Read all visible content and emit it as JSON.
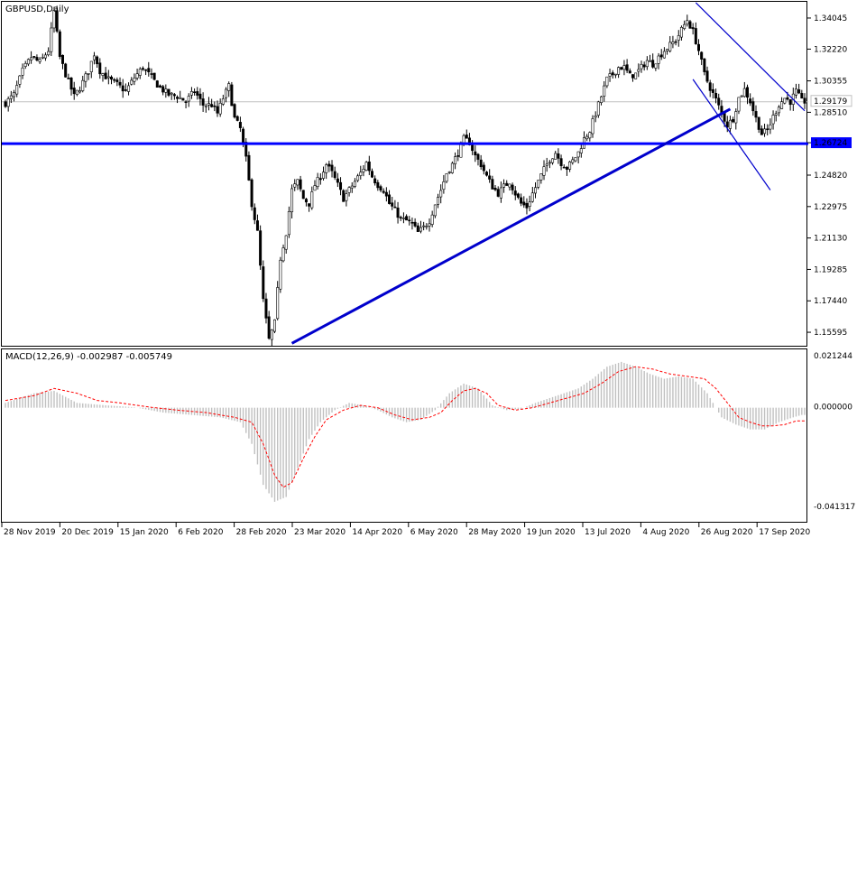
{
  "chart": {
    "title": "GBPUSD,Daily",
    "current_price": "1.29179",
    "hline_price": "1.26724",
    "colors": {
      "candle": "#000000",
      "trendline": "#0000cc",
      "hline": "#0000ff",
      "signal": "#ff0000",
      "histogram": "#c0c0c0",
      "current": "#c0c0c0"
    }
  },
  "macd": {
    "title": "MACD(12,26,9) -0.002987 -0.005749",
    "axis_labels": [
      "0.021244",
      "0.000000",
      "-0.041317"
    ]
  },
  "chart_data": {
    "type": "candlestick",
    "symbol": "GBPUSD",
    "timeframe": "Daily",
    "price_ticks": [
      "1.34045",
      "1.32220",
      "1.30355",
      "1.28510",
      "1.26724",
      "1.24820",
      "1.22975",
      "1.21130",
      "1.19285",
      "1.17440",
      "1.15595"
    ],
    "date_ticks": [
      "28 Nov 2019",
      "20 Dec 2019",
      "15 Jan 2020",
      "6 Feb 2020",
      "28 Feb 2020",
      "23 Mar 2020",
      "14 Apr 2020",
      "6 May 2020",
      "28 May 2020",
      "19 Jun 2020",
      "13 Jul 2020",
      "4 Aug 2020",
      "26 Aug 2020",
      "17 Sep 2020"
    ],
    "ylim": [
      1.1475,
      1.3505
    ],
    "close_path": [
      [
        0,
        1.291
      ],
      [
        3,
        1.296
      ],
      [
        6,
        1.31
      ],
      [
        9,
        1.318
      ],
      [
        12,
        1.315
      ],
      [
        15,
        1.322
      ],
      [
        17,
        1.345
      ],
      [
        19,
        1.318
      ],
      [
        21,
        1.308
      ],
      [
        24,
        1.295
      ],
      [
        26,
        1.3
      ],
      [
        29,
        1.31
      ],
      [
        31,
        1.32
      ],
      [
        33,
        1.31
      ],
      [
        36,
        1.305
      ],
      [
        39,
        1.302
      ],
      [
        42,
        1.298
      ],
      [
        45,
        1.306
      ],
      [
        48,
        1.312
      ],
      [
        51,
        1.306
      ],
      [
        54,
        1.3
      ],
      [
        57,
        1.296
      ],
      [
        60,
        1.295
      ],
      [
        63,
        1.292
      ],
      [
        66,
        1.298
      ],
      [
        69,
        1.29
      ],
      [
        72,
        1.29
      ],
      [
        74,
        1.285
      ],
      [
        76,
        1.294
      ],
      [
        78,
        1.301
      ],
      [
        80,
        1.282
      ],
      [
        82,
        1.276
      ],
      [
        84,
        1.258
      ],
      [
        86,
        1.232
      ],
      [
        88,
        1.215
      ],
      [
        90,
        1.175
      ],
      [
        92,
        1.152
      ],
      [
        94,
        1.162
      ],
      [
        96,
        1.2
      ],
      [
        98,
        1.215
      ],
      [
        100,
        1.24
      ],
      [
        102,
        1.245
      ],
      [
        104,
        1.235
      ],
      [
        106,
        1.232
      ],
      [
        108,
        1.243
      ],
      [
        110,
        1.248
      ],
      [
        112,
        1.255
      ],
      [
        114,
        1.25
      ],
      [
        116,
        1.243
      ],
      [
        118,
        1.235
      ],
      [
        120,
        1.24
      ],
      [
        122,
        1.245
      ],
      [
        124,
        1.25
      ],
      [
        126,
        1.256
      ],
      [
        128,
        1.248
      ],
      [
        130,
        1.243
      ],
      [
        132,
        1.24
      ],
      [
        134,
        1.232
      ],
      [
        136,
        1.228
      ],
      [
        138,
        1.223
      ],
      [
        140,
        1.222
      ],
      [
        142,
        1.22
      ],
      [
        144,
        1.215
      ],
      [
        146,
        1.218
      ],
      [
        148,
        1.222
      ],
      [
        150,
        1.232
      ],
      [
        152,
        1.24
      ],
      [
        154,
        1.25
      ],
      [
        156,
        1.255
      ],
      [
        158,
        1.262
      ],
      [
        160,
        1.27
      ],
      [
        162,
        1.268
      ],
      [
        164,
        1.26
      ],
      [
        166,
        1.255
      ],
      [
        168,
        1.248
      ],
      [
        170,
        1.242
      ],
      [
        172,
        1.238
      ],
      [
        174,
        1.242
      ],
      [
        176,
        1.245
      ],
      [
        178,
        1.238
      ],
      [
        180,
        1.232
      ],
      [
        182,
        1.23
      ],
      [
        184,
        1.238
      ],
      [
        186,
        1.245
      ],
      [
        188,
        1.252
      ],
      [
        190,
        1.258
      ],
      [
        192,
        1.262
      ],
      [
        194,
        1.256
      ],
      [
        196,
        1.253
      ],
      [
        198,
        1.257
      ],
      [
        200,
        1.262
      ],
      [
        202,
        1.27
      ],
      [
        204,
        1.275
      ],
      [
        206,
        1.285
      ],
      [
        208,
        1.295
      ],
      [
        210,
        1.305
      ],
      [
        212,
        1.308
      ],
      [
        214,
        1.312
      ],
      [
        216,
        1.312
      ],
      [
        218,
        1.307
      ],
      [
        220,
        1.308
      ],
      [
        222,
        1.312
      ],
      [
        224,
        1.316
      ],
      [
        226,
        1.314
      ],
      [
        228,
        1.318
      ],
      [
        230,
        1.322
      ],
      [
        232,
        1.325
      ],
      [
        234,
        1.328
      ],
      [
        236,
        1.334
      ],
      [
        238,
        1.34
      ],
      [
        240,
        1.333
      ],
      [
        242,
        1.322
      ],
      [
        244,
        1.308
      ],
      [
        246,
        1.3
      ],
      [
        248,
        1.293
      ],
      [
        250,
        1.285
      ],
      [
        252,
        1.278
      ],
      [
        254,
        1.282
      ],
      [
        256,
        1.294
      ],
      [
        258,
        1.299
      ],
      [
        260,
        1.292
      ],
      [
        262,
        1.282
      ],
      [
        264,
        1.273
      ],
      [
        266,
        1.275
      ],
      [
        268,
        1.283
      ],
      [
        270,
        1.29
      ],
      [
        272,
        1.294
      ],
      [
        274,
        1.292
      ],
      [
        276,
        1.298
      ],
      [
        278,
        1.292
      ]
    ],
    "trendline": [
      [
        100,
        1.15
      ],
      [
        253,
        1.2875
      ]
    ],
    "channel_upper": [
      [
        241,
        1.35
      ],
      [
        279,
        1.2865
      ]
    ],
    "channel_lower": [
      [
        240,
        1.305
      ],
      [
        267,
        1.24
      ]
    ],
    "macd_histogram": [
      [
        0,
        0.002
      ],
      [
        10,
        0.006
      ],
      [
        17,
        0.007
      ],
      [
        25,
        0.002
      ],
      [
        35,
        0.001
      ],
      [
        45,
        0.0002
      ],
      [
        55,
        -0.002
      ],
      [
        65,
        -0.003
      ],
      [
        75,
        -0.004
      ],
      [
        82,
        -0.006
      ],
      [
        86,
        -0.015
      ],
      [
        90,
        -0.032
      ],
      [
        94,
        -0.039
      ],
      [
        98,
        -0.037
      ],
      [
        102,
        -0.025
      ],
      [
        106,
        -0.013
      ],
      [
        110,
        -0.006
      ],
      [
        115,
        -0.001
      ],
      [
        120,
        0.002
      ],
      [
        125,
        0.001
      ],
      [
        130,
        -0.001
      ],
      [
        135,
        -0.004
      ],
      [
        140,
        -0.006
      ],
      [
        145,
        -0.005
      ],
      [
        150,
        -0.001
      ],
      [
        155,
        0.006
      ],
      [
        160,
        0.01
      ],
      [
        165,
        0.008
      ],
      [
        170,
        0.001
      ],
      [
        175,
        -0.001
      ],
      [
        180,
        -0.0005
      ],
      [
        185,
        0.002
      ],
      [
        190,
        0.004
      ],
      [
        195,
        0.006
      ],
      [
        200,
        0.008
      ],
      [
        205,
        0.012
      ],
      [
        210,
        0.017
      ],
      [
        215,
        0.019
      ],
      [
        220,
        0.017
      ],
      [
        225,
        0.014
      ],
      [
        230,
        0.012
      ],
      [
        235,
        0.013
      ],
      [
        240,
        0.012
      ],
      [
        245,
        0.006
      ],
      [
        250,
        -0.004
      ],
      [
        255,
        -0.007
      ],
      [
        260,
        -0.009
      ],
      [
        265,
        -0.009
      ],
      [
        270,
        -0.006
      ],
      [
        275,
        -0.004
      ],
      [
        278,
        -0.003
      ]
    ],
    "macd_signal": [
      [
        0,
        0.003
      ],
      [
        10,
        0.005
      ],
      [
        17,
        0.008
      ],
      [
        25,
        0.006
      ],
      [
        32,
        0.003
      ],
      [
        40,
        0.002
      ],
      [
        50,
        0.0003
      ],
      [
        60,
        -0.001
      ],
      [
        70,
        -0.002
      ],
      [
        80,
        -0.004
      ],
      [
        86,
        -0.006
      ],
      [
        90,
        -0.015
      ],
      [
        94,
        -0.028
      ],
      [
        97,
        -0.033
      ],
      [
        100,
        -0.031
      ],
      [
        104,
        -0.021
      ],
      [
        108,
        -0.012
      ],
      [
        112,
        -0.005
      ],
      [
        118,
        -0.001
      ],
      [
        124,
        0.001
      ],
      [
        130,
        0.0
      ],
      [
        136,
        -0.003
      ],
      [
        142,
        -0.005
      ],
      [
        148,
        -0.004
      ],
      [
        152,
        -0.002
      ],
      [
        156,
        0.003
      ],
      [
        160,
        0.007
      ],
      [
        164,
        0.008
      ],
      [
        168,
        0.006
      ],
      [
        172,
        0.001
      ],
      [
        178,
        -0.001
      ],
      [
        184,
        0.0
      ],
      [
        190,
        0.002
      ],
      [
        196,
        0.004
      ],
      [
        202,
        0.006
      ],
      [
        208,
        0.01
      ],
      [
        214,
        0.015
      ],
      [
        220,
        0.017
      ],
      [
        226,
        0.016
      ],
      [
        232,
        0.014
      ],
      [
        238,
        0.013
      ],
      [
        244,
        0.012
      ],
      [
        248,
        0.008
      ],
      [
        252,
        0.002
      ],
      [
        256,
        -0.004
      ],
      [
        260,
        -0.006
      ],
      [
        264,
        -0.0075
      ],
      [
        268,
        -0.0075
      ],
      [
        272,
        -0.007
      ],
      [
        276,
        -0.0055
      ],
      [
        278,
        -0.0055
      ]
    ],
    "macd_ylim": [
      -0.0413,
      0.0212
    ],
    "n_bars": 280
  }
}
